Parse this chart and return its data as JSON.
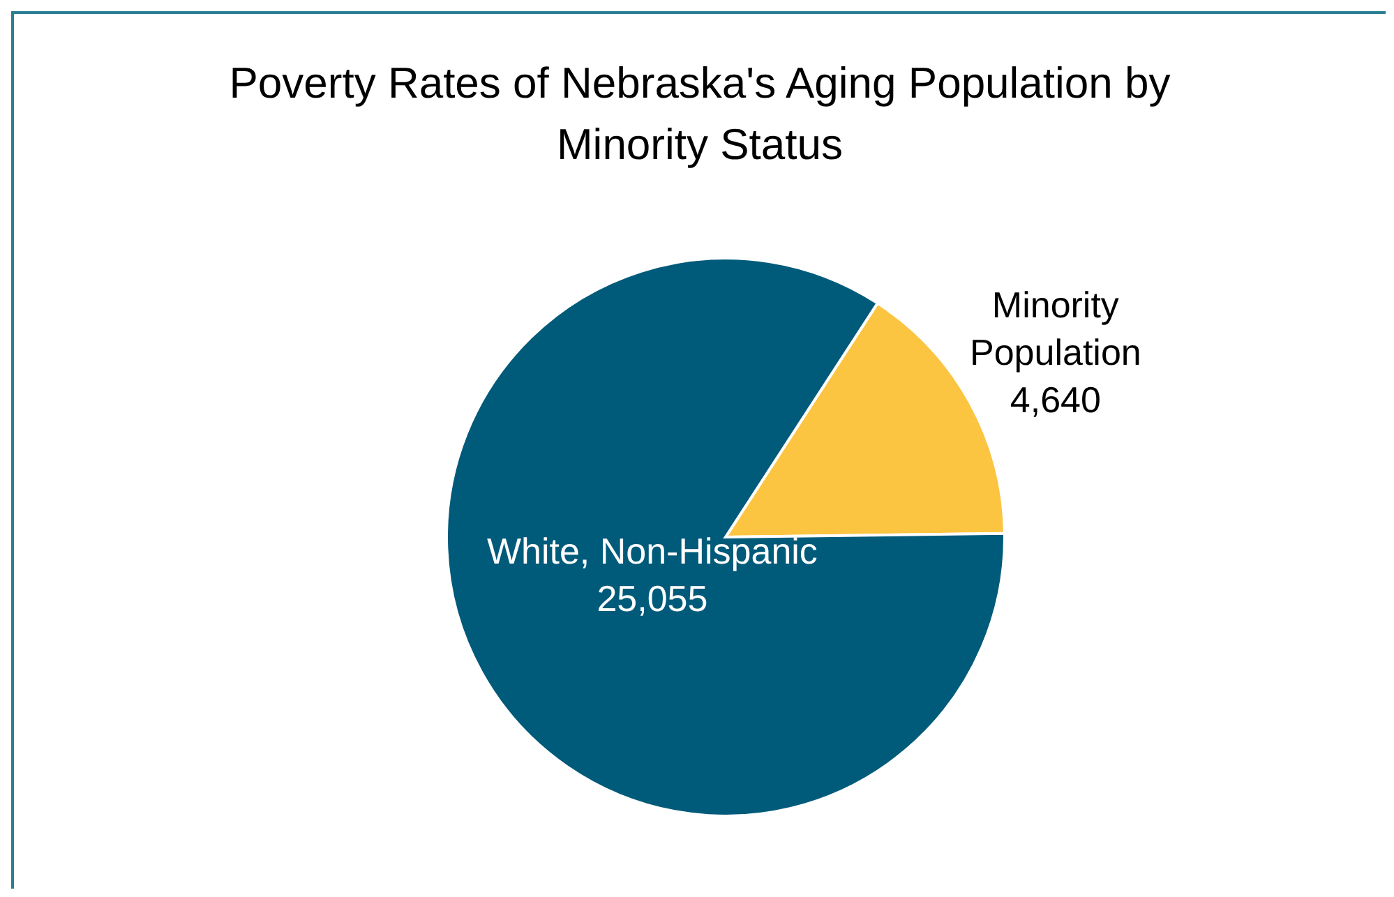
{
  "chart_data": {
    "type": "pie",
    "title": "Poverty Rates of Nebraska's Aging Population by Minority Status",
    "categories": [
      "Minority Population",
      "White, Non-Hispanic"
    ],
    "values": [
      4640,
      25055
    ],
    "colors": [
      "#fbc441",
      "#005a7a"
    ],
    "value_labels": [
      "4,640",
      "25,055"
    ],
    "legend": false
  }
}
